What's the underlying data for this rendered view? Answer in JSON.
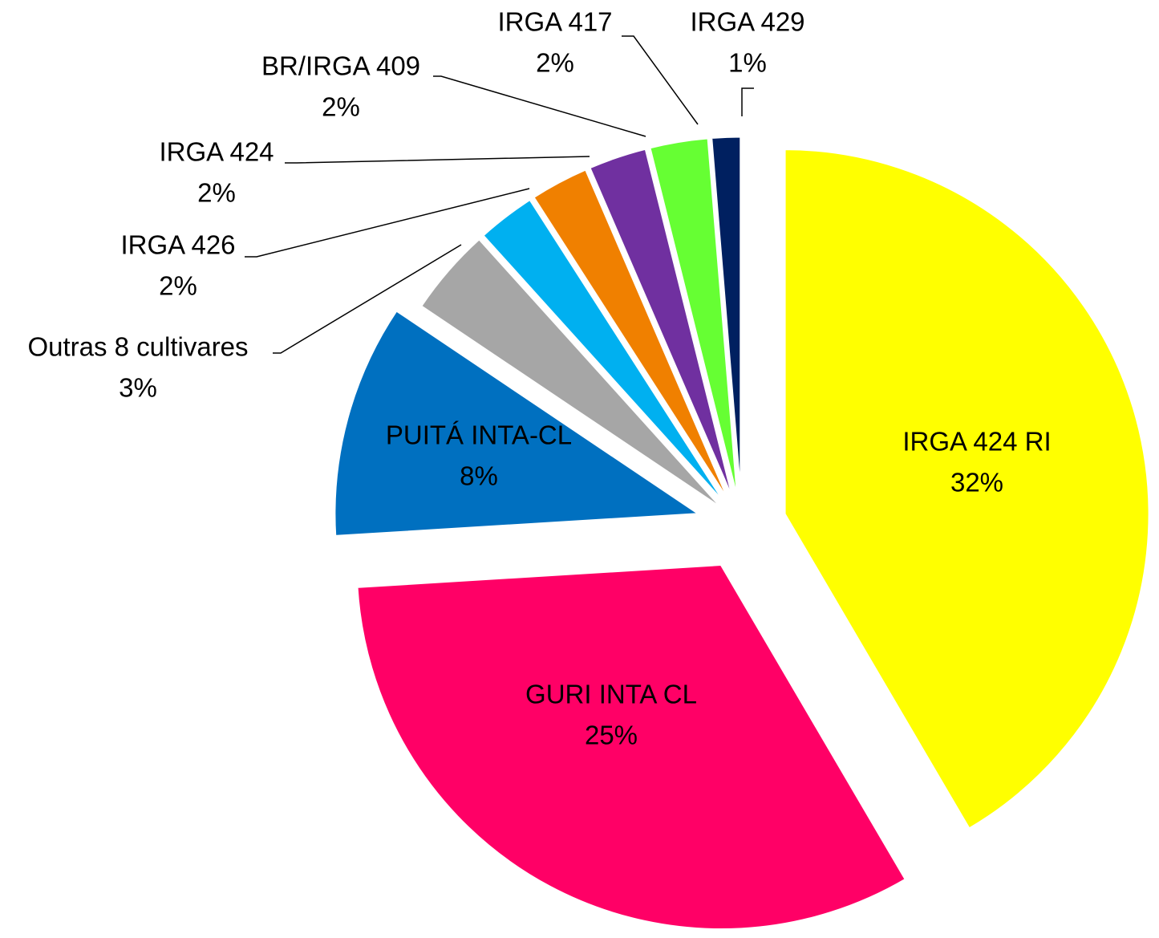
{
  "chart_data": {
    "type": "pie",
    "categories": [
      "IRGA 424 RI",
      "GURI INTA CL",
      "PUITÁ INTA-CL",
      "Outras 8 cultivares",
      "IRGA 426",
      "IRGA 424",
      "BR/IRGA 409",
      "IRGA 417",
      "IRGA 429"
    ],
    "values": [
      32,
      25,
      8,
      3,
      2,
      2,
      2,
      2,
      1
    ],
    "value_labels": [
      "32%",
      "25%",
      "8%",
      "3%",
      "2%",
      "2%",
      "2%",
      "2%",
      "1%"
    ],
    "colors": [
      "#ffff00",
      "#ff0066",
      "#0070c0",
      "#a6a6a6",
      "#00b0f0",
      "#f08000",
      "#7030a0",
      "#66ff33",
      "#002060"
    ]
  }
}
